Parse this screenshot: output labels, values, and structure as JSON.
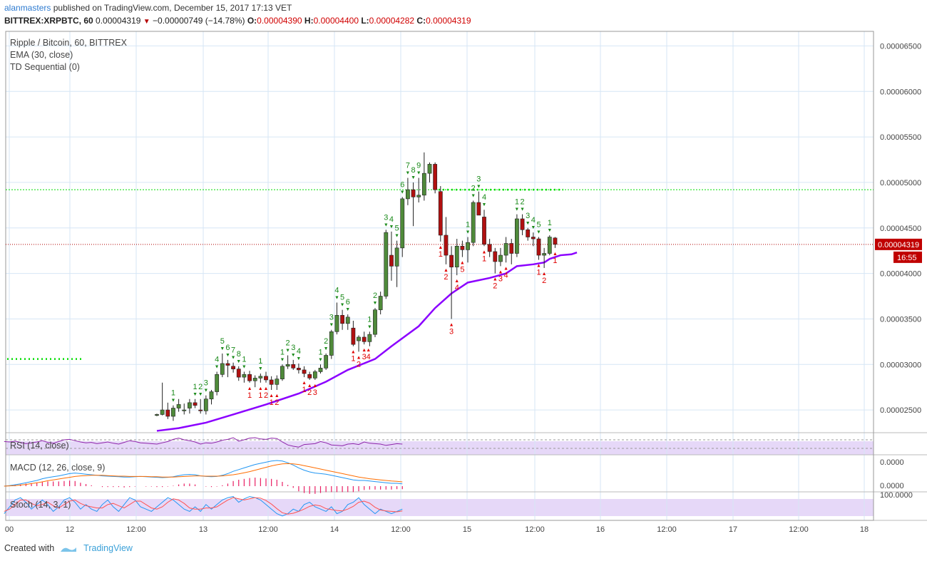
{
  "header": {
    "publisher": "alanmasters",
    "publish_text": "published on TradingView.com, December 15, 2017 17:13 VET",
    "symbol": "BITTREX:XRPBTC, 60",
    "last": "0.00004319",
    "change": "−0.00000749 (−14.78%)",
    "o_label": "O:",
    "o_value": "0.00004390",
    "h_label": "H:",
    "h_value": "0.00004400",
    "l_label": "L:",
    "l_value": "0.00004282",
    "c_label": "C:",
    "c_value": "0.00004319"
  },
  "legend": {
    "main_title": "Ripple / Bitcoin, 60, BITTREX",
    "ema": "EMA (30, close)",
    "td": "TD Sequential (0)",
    "rsi": "RSI (14, close)",
    "macd": "MACD (12, 26, close, 9)",
    "stoch": "Stoch (14, 3, 1)"
  },
  "footer": {
    "created_with": "Created with",
    "brand": "TradingView"
  },
  "colors": {
    "up": "#4f8a3a",
    "down": "#b01010",
    "ema": "#8b00ff",
    "grid": "#d6e6f5",
    "td_buy": "#e00000",
    "td_sell": "#1a8a1a",
    "level": "#00dd00",
    "price_line": "#b00000",
    "rsi_bg": "#e6d8f8",
    "macd_line": "#2196f3",
    "macd_signal": "#ff6d00",
    "hist": "#e91e63",
    "stoch_k": "#2196f3",
    "stoch_d": "#ff5252"
  },
  "chart_data": {
    "type": "candlestick",
    "title": "Ripple / Bitcoin, 60, BITTREX",
    "y_ticks": [
      "0.00006500",
      "0.00006000",
      "0.00005500",
      "0.00005000",
      "0.00004500",
      "0.00004000",
      "0.00003500",
      "0.00003000",
      "0.00002500"
    ],
    "ylim": [
      2.25e-05,
      6.66e-05
    ],
    "x_ticks": [
      "00",
      "12",
      "12:00",
      "13",
      "12:00",
      "14",
      "12:00",
      "15",
      "12:00",
      "16",
      "12:00",
      "17",
      "12:00",
      "18"
    ],
    "current_price": "0.00004319",
    "countdown": "16:55",
    "resistance_level": 4.92e-05,
    "support_level": 3.06e-05,
    "ohlc": [
      [
        2.44e-05,
        2.46e-05,
        2.43e-05,
        2.45e-05
      ],
      [
        2.45e-05,
        2.8e-05,
        2.44e-05,
        2.5e-05
      ],
      [
        2.5e-05,
        2.58e-05,
        2.4e-05,
        2.43e-05
      ],
      [
        2.43e-05,
        2.55e-05,
        2.38e-05,
        2.52e-05
      ],
      [
        2.52e-05,
        2.62e-05,
        2.48e-05,
        2.56e-05
      ],
      [
        2.49e-05,
        2.57e-05,
        2.45e-05,
        2.5e-05
      ],
      [
        2.52e-05,
        2.62e-05,
        2.46e-05,
        2.58e-05
      ],
      [
        2.58e-05,
        2.62e-05,
        2.52e-05,
        2.55e-05
      ],
      [
        2.5e-05,
        2.62e-05,
        2.46e-05,
        2.49e-05
      ],
      [
        2.49e-05,
        2.66e-05,
        2.45e-05,
        2.62e-05
      ],
      [
        2.62e-05,
        2.72e-05,
        2.56e-05,
        2.7e-05
      ],
      [
        2.7e-05,
        2.92e-05,
        2.66e-05,
        2.89e-05
      ],
      [
        2.89e-05,
        3.12e-05,
        2.86e-05,
        3.01e-05
      ],
      [
        3.01e-05,
        3.05e-05,
        2.86e-05,
        2.99e-05
      ],
      [
        2.98e-05,
        3.02e-05,
        2.91e-05,
        2.95e-05
      ],
      [
        2.95e-05,
        2.98e-05,
        2.82e-05,
        2.86e-05
      ],
      [
        2.86e-05,
        2.92e-05,
        2.8e-05,
        2.89e-05
      ],
      [
        2.89e-05,
        2.93e-05,
        2.8e-05,
        2.82e-05
      ],
      [
        2.82e-05,
        2.88e-05,
        2.75e-05,
        2.85e-05
      ],
      [
        2.85e-05,
        2.9e-05,
        2.8e-05,
        2.87e-05
      ],
      [
        2.87e-05,
        2.92e-05,
        2.8e-05,
        2.83e-05
      ],
      [
        2.83e-05,
        2.87e-05,
        2.72e-05,
        2.78e-05
      ],
      [
        2.78e-05,
        2.88e-05,
        2.72e-05,
        2.84e-05
      ],
      [
        2.84e-05,
        3e-05,
        2.82e-05,
        2.98e-05
      ],
      [
        2.98e-05,
        3.1e-05,
        2.95e-05,
        3e-05
      ],
      [
        3e-05,
        3.05e-05,
        2.94e-05,
        2.96e-05
      ],
      [
        2.96e-05,
        3.01e-05,
        2.9e-05,
        2.94e-05
      ],
      [
        2.94e-05,
        2.98e-05,
        2.86e-05,
        2.9e-05
      ],
      [
        2.89e-05,
        2.92e-05,
        2.83e-05,
        2.85e-05
      ],
      [
        2.85e-05,
        2.94e-05,
        2.83e-05,
        2.92e-05
      ],
      [
        2.92e-05,
        3e-05,
        2.9e-05,
        2.96e-05
      ],
      [
        2.96e-05,
        3.12e-05,
        2.94e-05,
        3.1e-05
      ],
      [
        3.1e-05,
        3.38e-05,
        3.06e-05,
        3.36e-05
      ],
      [
        3.36e-05,
        3.68e-05,
        3.33e-05,
        3.54e-05
      ],
      [
        3.54e-05,
        3.6e-05,
        3.38e-05,
        3.45e-05
      ],
      [
        3.45e-05,
        3.55e-05,
        3.38e-05,
        3.52e-05
      ],
      [
        3.4e-05,
        3.48e-05,
        3.2e-05,
        3.22e-05
      ],
      [
        3.26e-05,
        3.32e-05,
        3.14e-05,
        3.3e-05
      ],
      [
        3.3e-05,
        3.36e-05,
        3.22e-05,
        3.25e-05
      ],
      [
        3.25e-05,
        3.36e-05,
        3.2e-05,
        3.33e-05
      ],
      [
        3.33e-05,
        3.62e-05,
        3.3e-05,
        3.6e-05
      ],
      [
        3.6e-05,
        3.8e-05,
        3.55e-05,
        3.75e-05
      ],
      [
        3.75e-05,
        4.48e-05,
        3.72e-05,
        4.45e-05
      ],
      [
        4.2e-05,
        4.46e-05,
        3.92e-05,
        4.08e-05
      ],
      [
        4.08e-05,
        4.36e-05,
        3.85e-05,
        4.28e-05
      ],
      [
        4.28e-05,
        4.84e-05,
        4.18e-05,
        4.82e-05
      ],
      [
        4.82e-05,
        5.05e-05,
        4.75e-05,
        4.92e-05
      ],
      [
        4.92e-05,
        5e-05,
        4.52e-05,
        4.84e-05
      ],
      [
        4.84e-05,
        5.05e-05,
        4.78e-05,
        4.86e-05
      ],
      [
        4.86e-05,
        5.33e-05,
        4.8e-05,
        5.1e-05
      ],
      [
        5.1e-05,
        5.22e-05,
        5e-05,
        5.2e-05
      ],
      [
        5.2e-05,
        5.22e-05,
        4.88e-05,
        4.92e-05
      ],
      [
        4.9e-05,
        4.96e-05,
        4.35e-05,
        4.42e-05
      ],
      [
        4.42e-05,
        4.62e-05,
        4.1e-05,
        4.2e-05
      ],
      [
        4.2e-05,
        4.3e-05,
        3.5e-05,
        4.07e-05
      ],
      [
        4.07e-05,
        4.38e-05,
        3.98e-05,
        4.3e-05
      ],
      [
        4.3e-05,
        4.36e-05,
        4.18e-05,
        4.26e-05
      ],
      [
        4.26e-05,
        4.4e-05,
        4.12e-05,
        4.34e-05
      ],
      [
        4.34e-05,
        4.8e-05,
        4.3e-05,
        4.78e-05
      ],
      [
        4.78e-05,
        4.9e-05,
        4.64e-05,
        4.64e-05
      ],
      [
        4.62e-05,
        4.7e-05,
        4.3e-05,
        4.32e-05
      ],
      [
        4.32e-05,
        4.38e-05,
        4.18e-05,
        4.24e-05
      ],
      [
        4.24e-05,
        4.28e-05,
        4e-05,
        4.13e-05
      ],
      [
        4.13e-05,
        4.28e-05,
        4.08e-05,
        4.2e-05
      ],
      [
        4.2e-05,
        4.4e-05,
        4.12e-05,
        4.33e-05
      ],
      [
        4.33e-05,
        4.38e-05,
        4.1e-05,
        4.22e-05
      ],
      [
        4.22e-05,
        4.65e-05,
        4.18e-05,
        4.6e-05
      ],
      [
        4.6e-05,
        4.65e-05,
        4.42e-05,
        4.48e-05
      ],
      [
        4.48e-05,
        4.5e-05,
        4.36e-05,
        4.4e-05
      ],
      [
        4.4e-05,
        4.45e-05,
        4.3e-05,
        4.38e-05
      ],
      [
        4.38e-05,
        4.4e-05,
        4.15e-05,
        4.2e-05
      ],
      [
        4.2e-05,
        4.28e-05,
        4.06e-05,
        4.22e-05
      ],
      [
        4.22e-05,
        4.42e-05,
        4.2e-05,
        4.4e-05
      ],
      [
        4.39e-05,
        4.4e-05,
        4.28e-05,
        4.32e-05
      ]
    ],
    "ema": [
      [
        2.27e-05,
        0
      ],
      [
        2.3e-05,
        4
      ],
      [
        2.36e-05,
        9
      ],
      [
        2.45e-05,
        14
      ],
      [
        2.56e-05,
        20
      ],
      [
        2.68e-05,
        26
      ],
      [
        2.81e-05,
        31
      ],
      [
        2.94e-05,
        35
      ],
      [
        3.06e-05,
        40
      ],
      [
        3.2e-05,
        43
      ],
      [
        3.42e-05,
        48
      ],
      [
        3.62e-05,
        51
      ],
      [
        3.78e-05,
        54
      ],
      [
        3.9e-05,
        57
      ],
      [
        3.95e-05,
        61
      ],
      [
        4e-05,
        64
      ],
      [
        4.08e-05,
        66
      ],
      [
        4.1e-05,
        69
      ],
      [
        4.12e-05,
        71
      ],
      [
        4.16e-05,
        72
      ],
      [
        4.2e-05,
        74
      ],
      [
        4.21e-05,
        76
      ],
      [
        4.23e-05,
        77
      ]
    ],
    "td_sell_labels": [
      [
        "1",
        3,
        "above"
      ],
      [
        "1",
        7,
        "above"
      ],
      [
        "2",
        8,
        "above"
      ],
      [
        "3",
        9,
        "above"
      ],
      [
        "4",
        11,
        "above"
      ],
      [
        "5",
        12,
        "above"
      ],
      [
        "6",
        13,
        "above"
      ],
      [
        "7",
        14,
        "above"
      ],
      [
        "8",
        15,
        "above"
      ],
      [
        "1",
        16,
        "above"
      ],
      [
        "1",
        19,
        "above"
      ],
      [
        "1",
        23,
        "above"
      ],
      [
        "2",
        24,
        "above"
      ],
      [
        "3",
        25,
        "above"
      ],
      [
        "4",
        26,
        "above"
      ],
      [
        "1",
        30,
        "above"
      ],
      [
        "2",
        31,
        "above"
      ],
      [
        "3",
        32,
        "above"
      ],
      [
        "4",
        33,
        "above"
      ],
      [
        "5",
        34,
        "above"
      ],
      [
        "6",
        35,
        "above"
      ],
      [
        "1",
        39,
        "above"
      ],
      [
        "2",
        40,
        "above"
      ],
      [
        "3",
        42,
        "above"
      ],
      [
        "4",
        43,
        "above"
      ],
      [
        "5",
        44,
        "above"
      ],
      [
        "6",
        45,
        "above"
      ],
      [
        "7",
        46,
        "above"
      ],
      [
        "8",
        47,
        "above"
      ],
      [
        "9",
        48,
        "above"
      ],
      [
        "1",
        57,
        "above"
      ],
      [
        "2",
        58,
        "above"
      ],
      [
        "3",
        59,
        "above"
      ],
      [
        "4",
        60,
        "above"
      ],
      [
        "1",
        66,
        "above"
      ],
      [
        "2",
        67,
        "above"
      ],
      [
        "3",
        68,
        "above"
      ],
      [
        "4",
        69,
        "above"
      ],
      [
        "5",
        70,
        "above"
      ],
      [
        "1",
        72,
        "above"
      ]
    ],
    "td_buy_labels": [
      [
        "1",
        17,
        "below"
      ],
      [
        "1",
        19,
        "below"
      ],
      [
        "2",
        20,
        "below"
      ],
      [
        "1",
        21,
        "below"
      ],
      [
        "2",
        22,
        "below"
      ],
      [
        "1",
        27,
        "below"
      ],
      [
        "2",
        28,
        "below"
      ],
      [
        "3",
        29,
        "below"
      ],
      [
        "1",
        36,
        "below"
      ],
      [
        "2",
        37,
        "below"
      ],
      [
        "3",
        38,
        "below"
      ],
      [
        "4",
        38,
        "below2"
      ],
      [
        "1",
        52,
        "below"
      ],
      [
        "2",
        53,
        "below"
      ],
      [
        "3",
        54,
        "below"
      ],
      [
        "4",
        55,
        "below"
      ],
      [
        "5",
        56,
        "below"
      ],
      [
        "1",
        60,
        "below"
      ],
      [
        "2",
        62,
        "below"
      ],
      [
        "3",
        63,
        "below"
      ],
      [
        "4",
        64,
        "below"
      ],
      [
        "1",
        70,
        "below"
      ],
      [
        "2",
        71,
        "below"
      ],
      [
        "1",
        73,
        "below"
      ]
    ],
    "rsi": [
      62,
      60,
      64,
      58,
      52,
      56,
      60,
      66,
      58,
      54,
      62,
      70,
      72,
      66,
      60,
      56,
      58,
      52,
      56,
      60,
      54,
      50,
      58,
      66,
      62,
      56,
      54,
      52,
      50,
      56,
      62,
      72,
      78,
      70,
      66,
      60,
      50,
      56,
      54,
      60,
      68,
      72,
      80,
      64,
      70,
      78,
      80,
      74,
      72,
      78,
      76,
      60,
      46,
      40,
      36,
      48,
      50,
      52,
      62,
      56,
      46,
      44,
      42,
      50,
      52,
      48,
      60,
      54,
      52,
      50,
      44,
      48,
      52,
      50
    ],
    "macd": {
      "line": [
        0,
        0.02,
        0.05,
        0.08,
        0.12,
        0.16,
        0.2,
        0.26,
        0.3,
        0.33,
        0.36,
        0.4,
        0.44,
        0.46,
        0.44,
        0.42,
        0.4,
        0.38,
        0.36,
        0.35,
        0.34,
        0.33,
        0.32,
        0.32,
        0.33,
        0.34,
        0.33,
        0.32,
        0.31,
        0.3,
        0.31,
        0.33,
        0.37,
        0.4,
        0.41,
        0.4,
        0.36,
        0.34,
        0.33,
        0.34,
        0.38,
        0.44,
        0.52,
        0.58,
        0.64,
        0.7,
        0.76,
        0.8,
        0.84,
        0.88,
        0.9,
        0.88,
        0.82,
        0.74,
        0.64,
        0.56,
        0.5,
        0.46,
        0.44,
        0.42,
        0.38,
        0.34,
        0.3,
        0.26,
        0.22,
        0.2,
        0.2,
        0.18,
        0.16,
        0.14,
        0.12,
        0.1,
        0.1,
        0.08
      ],
      "signal": [
        0,
        0.01,
        0.02,
        0.04,
        0.06,
        0.09,
        0.12,
        0.15,
        0.19,
        0.22,
        0.25,
        0.28,
        0.31,
        0.34,
        0.36,
        0.37,
        0.38,
        0.38,
        0.38,
        0.37,
        0.36,
        0.35,
        0.35,
        0.34,
        0.34,
        0.34,
        0.34,
        0.33,
        0.33,
        0.32,
        0.32,
        0.32,
        0.33,
        0.34,
        0.35,
        0.36,
        0.36,
        0.35,
        0.35,
        0.35,
        0.36,
        0.38,
        0.4,
        0.43,
        0.47,
        0.51,
        0.56,
        0.61,
        0.66,
        0.71,
        0.75,
        0.78,
        0.79,
        0.78,
        0.76,
        0.72,
        0.68,
        0.64,
        0.6,
        0.56,
        0.52,
        0.48,
        0.44,
        0.4,
        0.36,
        0.32,
        0.29,
        0.26,
        0.24,
        0.22,
        0.2,
        0.18,
        0.17,
        0.15
      ]
    },
    "stoch": {
      "k": [
        20,
        50,
        80,
        90,
        70,
        40,
        60,
        80,
        60,
        30,
        50,
        80,
        90,
        70,
        40,
        60,
        40,
        30,
        60,
        80,
        50,
        30,
        60,
        90,
        80,
        50,
        40,
        30,
        50,
        70,
        90,
        80,
        60,
        40,
        30,
        50,
        30,
        60,
        40,
        60,
        80,
        90,
        95,
        70,
        85,
        95,
        90,
        80,
        60,
        40,
        20,
        10,
        20,
        40,
        30,
        60,
        70,
        50,
        40,
        30,
        50,
        20,
        30,
        60,
        70,
        90,
        60,
        40,
        20,
        40,
        30,
        20,
        30,
        40
      ],
      "d": [
        30,
        40,
        60,
        80,
        80,
        65,
        55,
        60,
        70,
        55,
        45,
        60,
        75,
        80,
        65,
        55,
        50,
        45,
        45,
        60,
        65,
        55,
        45,
        60,
        75,
        75,
        60,
        45,
        40,
        50,
        70,
        85,
        80,
        65,
        45,
        40,
        40,
        45,
        45,
        50,
        65,
        80,
        90,
        85,
        80,
        85,
        90,
        88,
        78,
        62,
        42,
        24,
        18,
        22,
        30,
        40,
        52,
        58,
        54,
        42,
        38,
        34,
        32,
        40,
        52,
        70,
        75,
        66,
        48,
        36,
        32,
        30,
        28,
        32
      ]
    }
  }
}
